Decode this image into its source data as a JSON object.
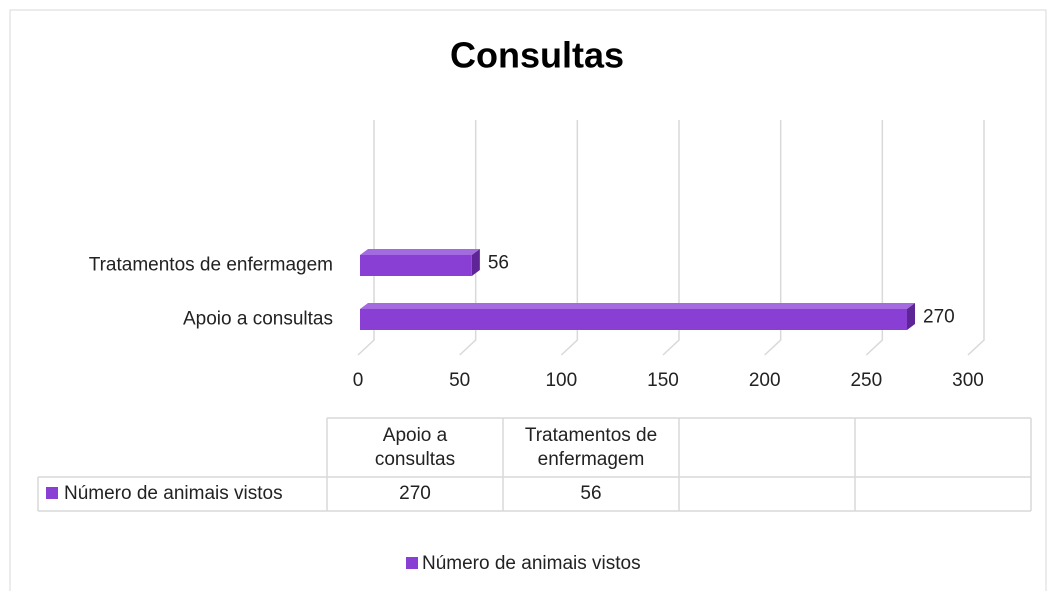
{
  "chart_data": {
    "type": "bar",
    "orientation": "horizontal",
    "title": "Consultas",
    "categories": [
      "Apoio a consultas",
      "Tratamentos de enfermagem"
    ],
    "series": [
      {
        "name": "Número de animais vistos",
        "color": "#8a3fd4",
        "values": [
          270,
          56
        ]
      }
    ],
    "xlim": [
      0,
      300
    ],
    "xticks": [
      0,
      50,
      100,
      150,
      200,
      250,
      300
    ],
    "grid": true,
    "legend": "bottom",
    "data_table": true
  }
}
